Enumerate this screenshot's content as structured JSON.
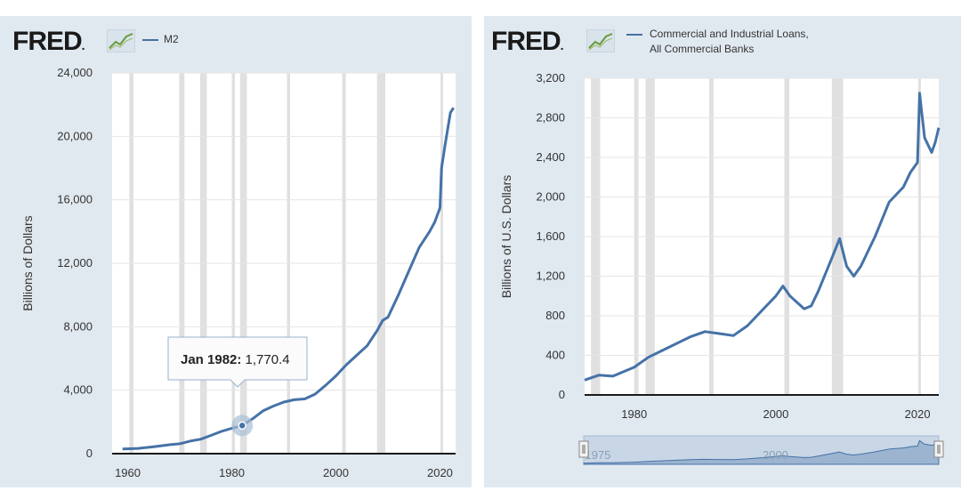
{
  "left": {
    "logo": "FRED",
    "legend": "M2",
    "tooltip": {
      "date": "Jan 1982:",
      "value": "1,770.4"
    },
    "chart_data": {
      "type": "line",
      "series": [
        {
          "name": "M2",
          "color": "#4572a7",
          "x": [
            1959,
            1962,
            1965,
            1968,
            1970,
            1972,
            1974,
            1976,
            1978,
            1980,
            1982,
            1984,
            1986,
            1988,
            1990,
            1992,
            1994,
            1996,
            1998,
            2000,
            2002,
            2004,
            2006,
            2008,
            2009,
            2010,
            2012,
            2014,
            2016,
            2018,
            2019,
            2020,
            2020.3,
            2021,
            2022,
            2022.6
          ],
          "y": [
            290,
            330,
            440,
            560,
            620,
            790,
            910,
            1150,
            1400,
            1600,
            1770,
            2200,
            2700,
            3000,
            3250,
            3400,
            3450,
            3750,
            4300,
            4900,
            5600,
            6200,
            6800,
            7800,
            8400,
            8600,
            10000,
            11500,
            13000,
            14000,
            14600,
            15500,
            18000,
            19500,
            21500,
            21800
          ]
        }
      ],
      "ylabel": "Billions of Dollars",
      "xlim": [
        1957,
        2023
      ],
      "ylim": [
        0,
        24000
      ],
      "yticks": [
        "0",
        "4,000",
        "8,000",
        "12,000",
        "16,000",
        "20,000",
        "24,000"
      ],
      "xticks": [
        "1960",
        "1980",
        "2000",
        "2020"
      ],
      "recessions": [
        [
          1960.3,
          1961.1
        ],
        [
          1969.9,
          1970.9
        ],
        [
          1973.9,
          1975.2
        ],
        [
          1980.0,
          1980.6
        ],
        [
          1981.6,
          1982.9
        ],
        [
          1990.6,
          1991.2
        ],
        [
          2001.2,
          2001.9
        ],
        [
          2007.9,
          2009.5
        ],
        [
          2020.1,
          2020.4
        ]
      ]
    }
  },
  "right": {
    "logo": "FRED",
    "legend_line1": "Commercial and Industrial Loans,",
    "legend_line2": "All Commercial Banks",
    "navigator_labels": [
      "1975",
      "2000"
    ],
    "chart_data": {
      "type": "line",
      "series": [
        {
          "name": "Commercial and Industrial Loans, All Commercial Banks",
          "color": "#4572a7",
          "x": [
            1973,
            1975,
            1977,
            1980,
            1982,
            1984,
            1986,
            1988,
            1990,
            1992,
            1994,
            1996,
            1998,
            2000,
            2001,
            2002,
            2004,
            2005,
            2006,
            2008,
            2009,
            2010,
            2011,
            2012,
            2014,
            2016,
            2018,
            2019,
            2020,
            2020.3,
            2020.6,
            2021,
            2022,
            2022.5,
            2023
          ],
          "y": [
            150,
            200,
            190,
            280,
            380,
            450,
            520,
            590,
            640,
            620,
            600,
            700,
            850,
            1000,
            1100,
            1000,
            870,
            900,
            1050,
            1400,
            1580,
            1300,
            1200,
            1300,
            1600,
            1950,
            2100,
            2250,
            2350,
            3050,
            2850,
            2600,
            2450,
            2550,
            2700
          ]
        }
      ],
      "ylabel": "Billions of U.S. Dollars",
      "xlim": [
        1973,
        2023
      ],
      "ylim": [
        0,
        3200
      ],
      "yticks": [
        "0",
        "400",
        "800",
        "1,200",
        "1,600",
        "2,000",
        "2,400",
        "2,800",
        "3,200"
      ],
      "xticks": [
        "1980",
        "2000",
        "2020"
      ],
      "recessions": [
        [
          1973.9,
          1975.2
        ],
        [
          1980.0,
          1980.6
        ],
        [
          1981.6,
          1982.9
        ],
        [
          1990.6,
          1991.2
        ],
        [
          2001.2,
          2001.9
        ],
        [
          2007.9,
          2009.5
        ],
        [
          2020.1,
          2020.4
        ]
      ]
    }
  }
}
